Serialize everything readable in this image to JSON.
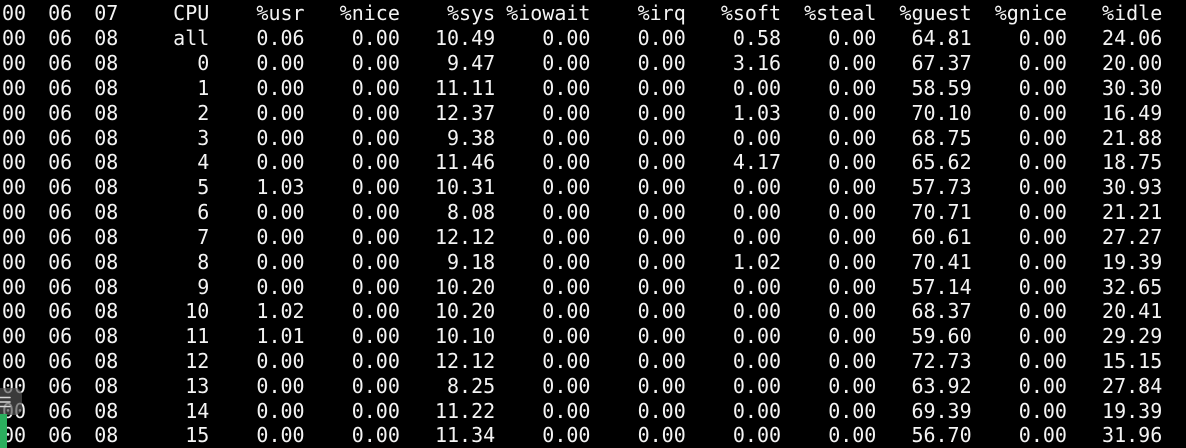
{
  "terminal": {
    "bg_color": "#000000",
    "text_color": "#f4f4f4",
    "header": {
      "time": "00时06分07秒",
      "columns": [
        "CPU",
        "%usr",
        "%nice",
        "%sys",
        "%iowait",
        "%irq",
        "%soft",
        "%steal",
        "%guest",
        "%gnice",
        "%idle"
      ]
    },
    "rows": [
      {
        "time": "00时06分08秒",
        "cpu": "all",
        "values": [
          "0.06",
          "0.00",
          "10.49",
          "0.00",
          "0.00",
          "0.58",
          "0.00",
          "64.81",
          "0.00",
          "24.06"
        ]
      },
      {
        "time": "00时06分08秒",
        "cpu": "0",
        "values": [
          "0.00",
          "0.00",
          "9.47",
          "0.00",
          "0.00",
          "3.16",
          "0.00",
          "67.37",
          "0.00",
          "20.00"
        ]
      },
      {
        "time": "00时06分08秒",
        "cpu": "1",
        "values": [
          "0.00",
          "0.00",
          "11.11",
          "0.00",
          "0.00",
          "0.00",
          "0.00",
          "58.59",
          "0.00",
          "30.30"
        ]
      },
      {
        "time": "00时06分08秒",
        "cpu": "2",
        "values": [
          "0.00",
          "0.00",
          "12.37",
          "0.00",
          "0.00",
          "1.03",
          "0.00",
          "70.10",
          "0.00",
          "16.49"
        ]
      },
      {
        "time": "00时06分08秒",
        "cpu": "3",
        "values": [
          "0.00",
          "0.00",
          "9.38",
          "0.00",
          "0.00",
          "0.00",
          "0.00",
          "68.75",
          "0.00",
          "21.88"
        ]
      },
      {
        "time": "00时06分08秒",
        "cpu": "4",
        "values": [
          "0.00",
          "0.00",
          "11.46",
          "0.00",
          "0.00",
          "4.17",
          "0.00",
          "65.62",
          "0.00",
          "18.75"
        ]
      },
      {
        "time": "00时06分08秒",
        "cpu": "5",
        "values": [
          "1.03",
          "0.00",
          "10.31",
          "0.00",
          "0.00",
          "0.00",
          "0.00",
          "57.73",
          "0.00",
          "30.93"
        ]
      },
      {
        "time": "00时06分08秒",
        "cpu": "6",
        "values": [
          "0.00",
          "0.00",
          "8.08",
          "0.00",
          "0.00",
          "0.00",
          "0.00",
          "70.71",
          "0.00",
          "21.21"
        ]
      },
      {
        "time": "00时06分08秒",
        "cpu": "7",
        "values": [
          "0.00",
          "0.00",
          "12.12",
          "0.00",
          "0.00",
          "0.00",
          "0.00",
          "60.61",
          "0.00",
          "27.27"
        ]
      },
      {
        "time": "00时06分08秒",
        "cpu": "8",
        "values": [
          "0.00",
          "0.00",
          "9.18",
          "0.00",
          "0.00",
          "1.02",
          "0.00",
          "70.41",
          "0.00",
          "19.39"
        ]
      },
      {
        "time": "00时06分08秒",
        "cpu": "9",
        "values": [
          "0.00",
          "0.00",
          "10.20",
          "0.00",
          "0.00",
          "0.00",
          "0.00",
          "57.14",
          "0.00",
          "32.65"
        ]
      },
      {
        "time": "00时06分08秒",
        "cpu": "10",
        "values": [
          "1.02",
          "0.00",
          "10.20",
          "0.00",
          "0.00",
          "0.00",
          "0.00",
          "68.37",
          "0.00",
          "20.41"
        ]
      },
      {
        "time": "00时06分08秒",
        "cpu": "11",
        "values": [
          "1.01",
          "0.00",
          "10.10",
          "0.00",
          "0.00",
          "0.00",
          "0.00",
          "59.60",
          "0.00",
          "29.29"
        ]
      },
      {
        "time": "00时06分08秒",
        "cpu": "12",
        "values": [
          "0.00",
          "0.00",
          "12.12",
          "0.00",
          "0.00",
          "0.00",
          "0.00",
          "72.73",
          "0.00",
          "15.15"
        ]
      },
      {
        "time": "00时06分08秒",
        "cpu": "13",
        "values": [
          "0.00",
          "0.00",
          "8.25",
          "0.00",
          "0.00",
          "0.00",
          "0.00",
          "63.92",
          "0.00",
          "27.84"
        ]
      },
      {
        "time": "00时06分08秒",
        "cpu": "14",
        "values": [
          "0.00",
          "0.00",
          "11.22",
          "0.00",
          "0.00",
          "0.00",
          "0.00",
          "69.39",
          "0.00",
          "19.39"
        ]
      },
      {
        "time": "00时06分08秒",
        "cpu": "15",
        "values": [
          "0.00",
          "0.00",
          "11.34",
          "0.00",
          "0.00",
          "0.00",
          "0.00",
          "56.70",
          "0.00",
          "31.96"
        ]
      }
    ]
  },
  "overlays": {
    "list_button_icon": "list-icon",
    "edge_bar_color": "#2bb05e"
  }
}
